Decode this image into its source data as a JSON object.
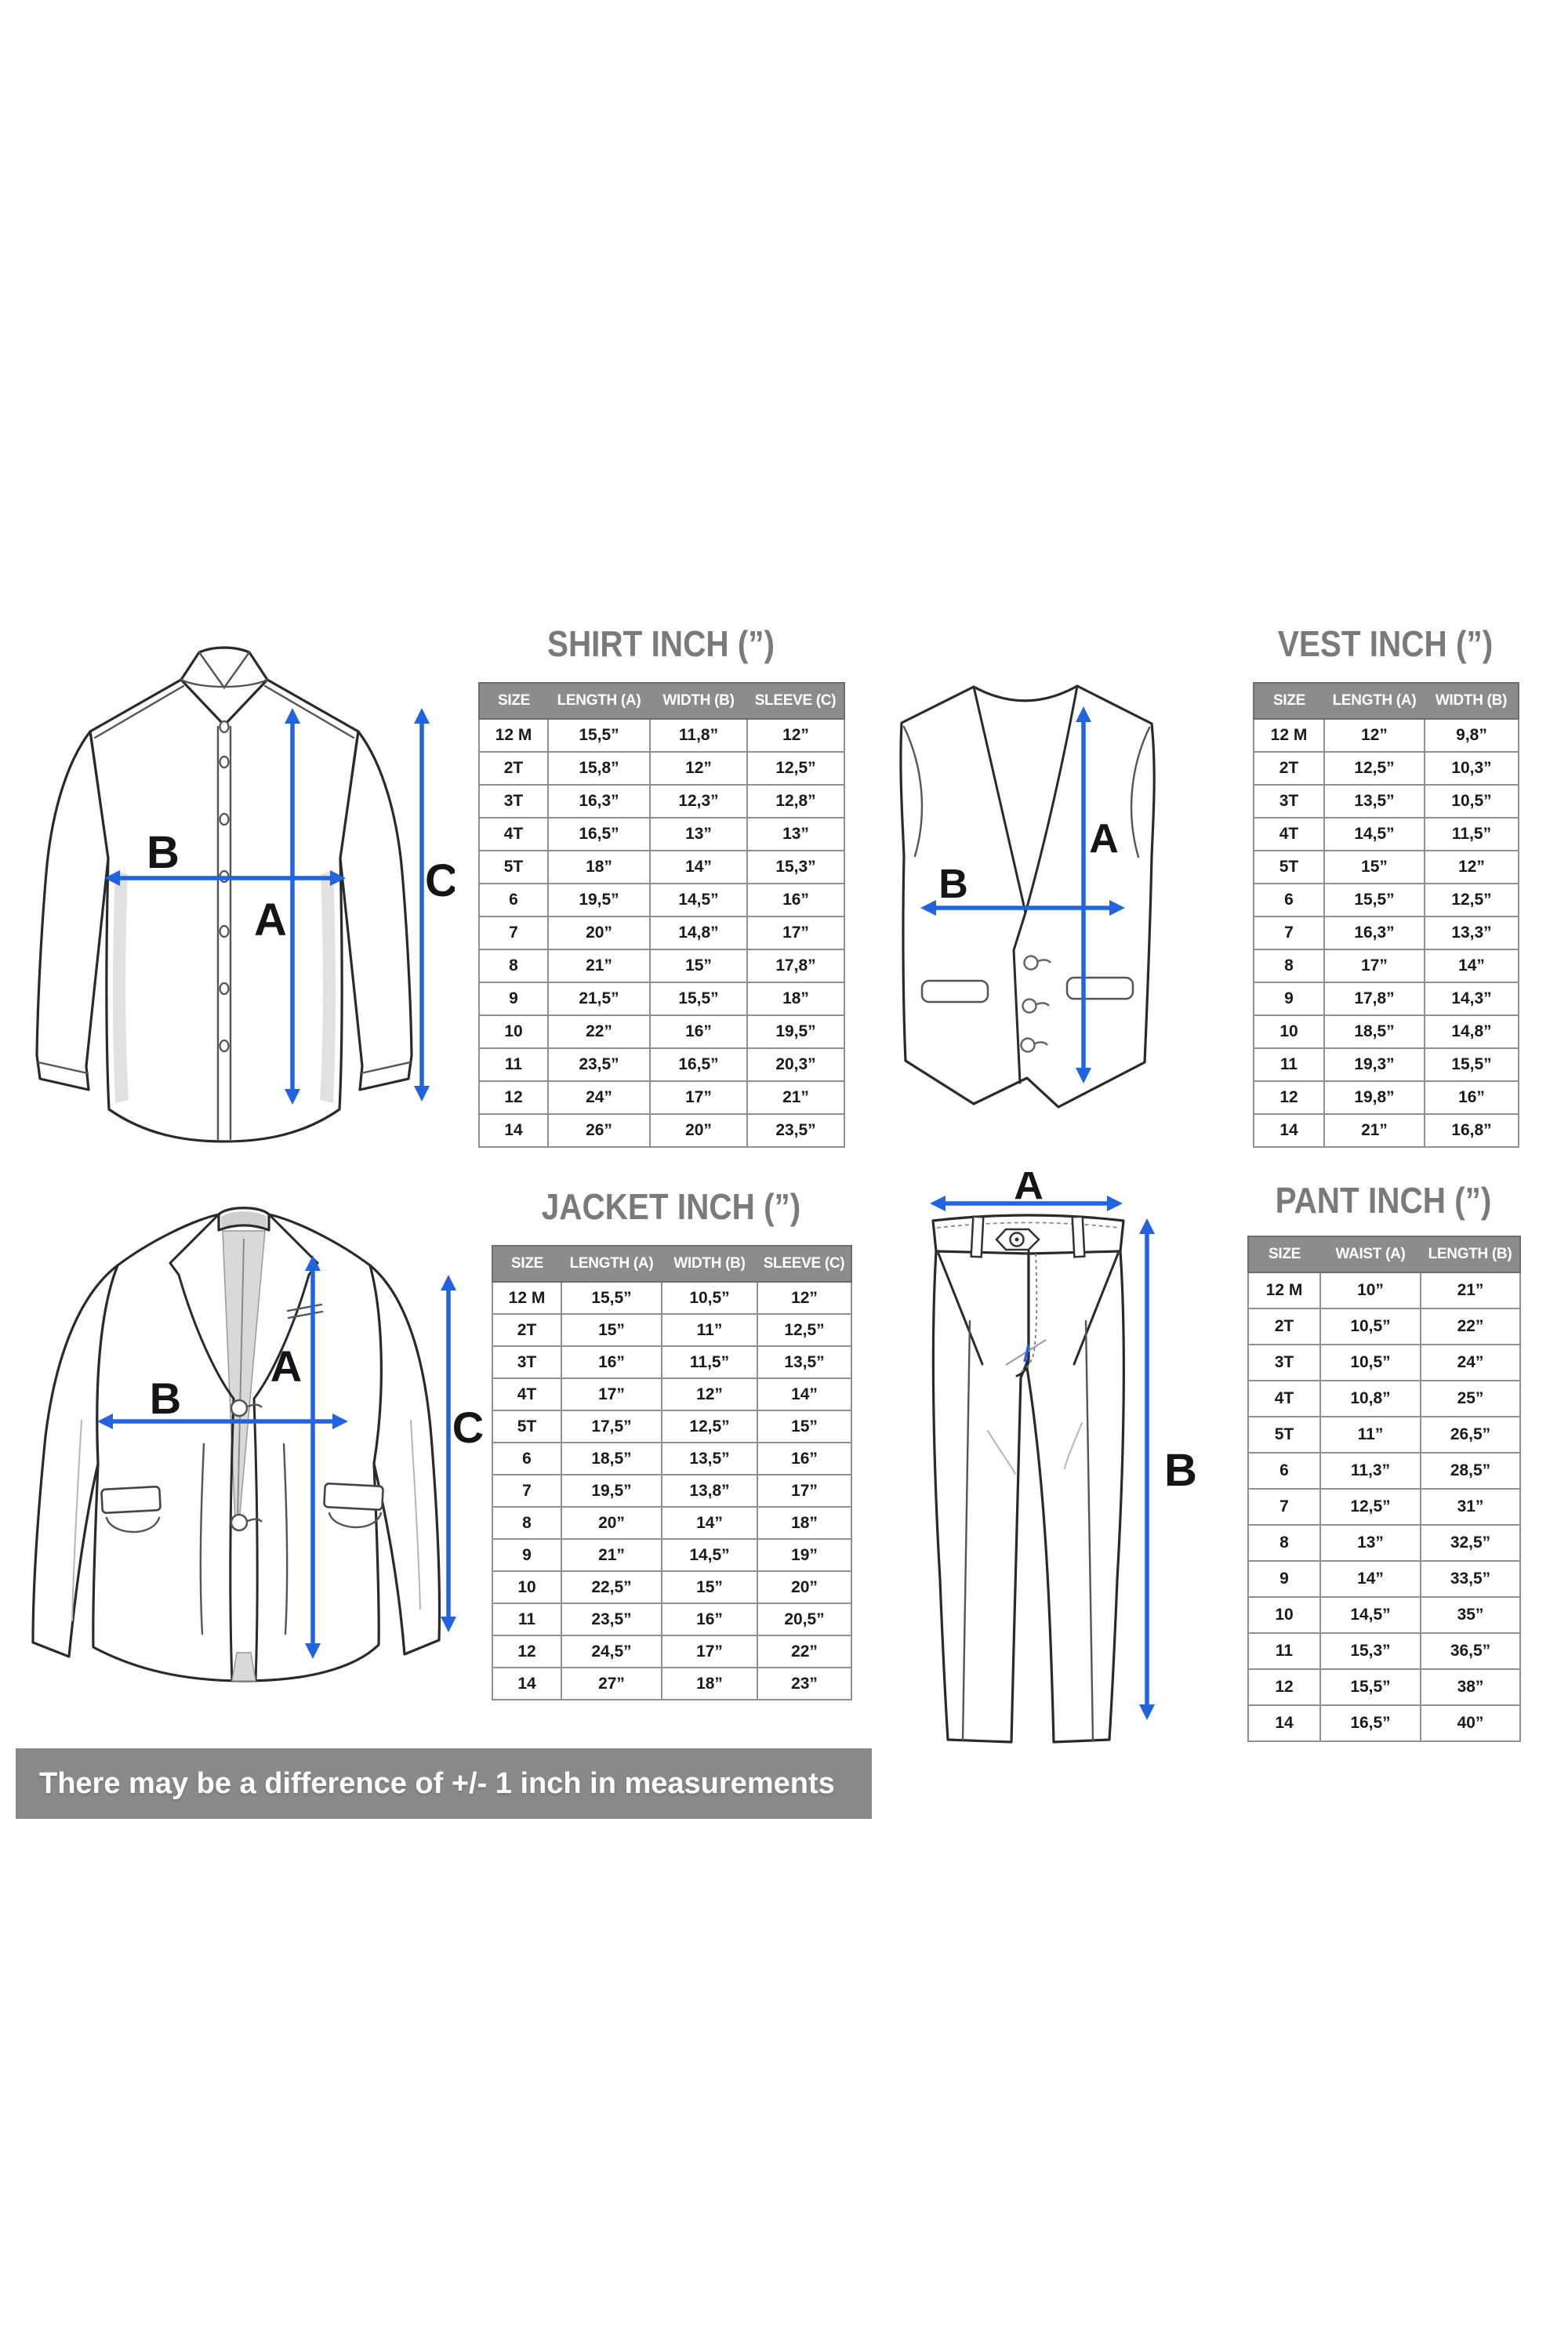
{
  "colors": {
    "accent_blue": "#2263e0",
    "header_gray": "#8c8c8c",
    "title_gray": "#7a7a7a",
    "bar_gray": "#8a8a8a",
    "line_dark": "#2a2a2a"
  },
  "measure_labels": {
    "a": "A",
    "b": "B",
    "c": "C"
  },
  "disclaimer": "There may be a difference of +/- 1 inch in measurements",
  "tables": {
    "shirt": {
      "title": "SHIRT INCH (”)",
      "columns": [
        "SIZE",
        "LENGTH (A)",
        "WIDTH (B)",
        "SLEEVE (C)"
      ],
      "rows": [
        [
          "12 M",
          "15,5”",
          "11,8”",
          "12”"
        ],
        [
          "2T",
          "15,8”",
          "12”",
          "12,5”"
        ],
        [
          "3T",
          "16,3”",
          "12,3”",
          "12,8”"
        ],
        [
          "4T",
          "16,5”",
          "13”",
          "13”"
        ],
        [
          "5T",
          "18”",
          "14”",
          "15,3”"
        ],
        [
          "6",
          "19,5”",
          "14,5”",
          "16”"
        ],
        [
          "7",
          "20”",
          "14,8”",
          "17”"
        ],
        [
          "8",
          "21”",
          "15”",
          "17,8”"
        ],
        [
          "9",
          "21,5”",
          "15,5”",
          "18”"
        ],
        [
          "10",
          "22”",
          "16”",
          "19,5”"
        ],
        [
          "11",
          "23,5”",
          "16,5”",
          "20,3”"
        ],
        [
          "12",
          "24”",
          "17”",
          "21”"
        ],
        [
          "14",
          "26”",
          "20”",
          "23,5”"
        ]
      ]
    },
    "vest": {
      "title": "VEST INCH (”)",
      "columns": [
        "SIZE",
        "LENGTH (A)",
        "WIDTH (B)"
      ],
      "rows": [
        [
          "12 M",
          "12”",
          "9,8”"
        ],
        [
          "2T",
          "12,5”",
          "10,3”"
        ],
        [
          "3T",
          "13,5”",
          "10,5”"
        ],
        [
          "4T",
          "14,5”",
          "11,5”"
        ],
        [
          "5T",
          "15”",
          "12”"
        ],
        [
          "6",
          "15,5”",
          "12,5”"
        ],
        [
          "7",
          "16,3”",
          "13,3”"
        ],
        [
          "8",
          "17”",
          "14”"
        ],
        [
          "9",
          "17,8”",
          "14,3”"
        ],
        [
          "10",
          "18,5”",
          "14,8”"
        ],
        [
          "11",
          "19,3”",
          "15,5”"
        ],
        [
          "12",
          "19,8”",
          "16”"
        ],
        [
          "14",
          "21”",
          "16,8”"
        ]
      ]
    },
    "jacket": {
      "title": "JACKET INCH (”)",
      "columns": [
        "SIZE",
        "LENGTH (A)",
        "WIDTH (B)",
        "SLEEVE (C)"
      ],
      "rows": [
        [
          "12 M",
          "15,5”",
          "10,5”",
          "12”"
        ],
        [
          "2T",
          "15”",
          "11”",
          "12,5”"
        ],
        [
          "3T",
          "16”",
          "11,5”",
          "13,5”"
        ],
        [
          "4T",
          "17”",
          "12”",
          "14”"
        ],
        [
          "5T",
          "17,5”",
          "12,5”",
          "15”"
        ],
        [
          "6",
          "18,5”",
          "13,5”",
          "16”"
        ],
        [
          "7",
          "19,5”",
          "13,8”",
          "17”"
        ],
        [
          "8",
          "20”",
          "14”",
          "18”"
        ],
        [
          "9",
          "21”",
          "14,5”",
          "19”"
        ],
        [
          "10",
          "22,5”",
          "15”",
          "20”"
        ],
        [
          "11",
          "23,5”",
          "16”",
          "20,5”"
        ],
        [
          "12",
          "24,5”",
          "17”",
          "22”"
        ],
        [
          "14",
          "27”",
          "18”",
          "23”"
        ]
      ]
    },
    "pant": {
      "title": "PANT INCH (”)",
      "columns": [
        "SIZE",
        "WAIST (A)",
        "LENGTH (B)"
      ],
      "rows": [
        [
          "12 M",
          "10”",
          "21”"
        ],
        [
          "2T",
          "10,5”",
          "22”"
        ],
        [
          "3T",
          "10,5”",
          "24”"
        ],
        [
          "4T",
          "10,8”",
          "25”"
        ],
        [
          "5T",
          "11”",
          "26,5”"
        ],
        [
          "6",
          "11,3”",
          "28,5”"
        ],
        [
          "7",
          "12,5”",
          "31”"
        ],
        [
          "8",
          "13”",
          "32,5”"
        ],
        [
          "9",
          "14”",
          "33,5”"
        ],
        [
          "10",
          "14,5”",
          "35”"
        ],
        [
          "11",
          "15,3”",
          "36,5”"
        ],
        [
          "12",
          "15,5”",
          "38”"
        ],
        [
          "14",
          "16,5”",
          "40”"
        ]
      ]
    }
  }
}
